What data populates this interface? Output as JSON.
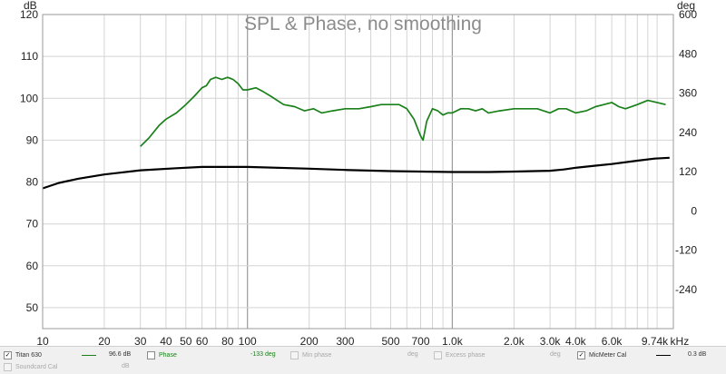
{
  "chart_data": {
    "type": "line",
    "title": "SPL & Phase, no smoothing",
    "left_axis_unit": "dB",
    "right_axis_unit": "deg",
    "x_unit": "kHz",
    "x_scale": "log",
    "xlim": [
      10,
      12000
    ],
    "ylim": [
      45,
      120
    ],
    "y2lim": [
      -360,
      600
    ],
    "grid": true,
    "x_ticks": [
      {
        "v": 10,
        "label": "10"
      },
      {
        "v": 20,
        "label": "20"
      },
      {
        "v": 30,
        "label": "30"
      },
      {
        "v": 40,
        "label": "40"
      },
      {
        "v": 50,
        "label": "50"
      },
      {
        "v": 60,
        "label": "60"
      },
      {
        "v": 80,
        "label": "80"
      },
      {
        "v": 100,
        "label": "100"
      },
      {
        "v": 200,
        "label": "200"
      },
      {
        "v": 300,
        "label": "300"
      },
      {
        "v": 500,
        "label": "500"
      },
      {
        "v": 700,
        "label": "700"
      },
      {
        "v": 1000,
        "label": "1.0k"
      },
      {
        "v": 2000,
        "label": "2.0k"
      },
      {
        "v": 3000,
        "label": "3.0k"
      },
      {
        "v": 4000,
        "label": "4.0k"
      },
      {
        "v": 6000,
        "label": "6.0k"
      },
      {
        "v": 9740,
        "label": "9.74k"
      }
    ],
    "y_ticks": [
      "50",
      "60",
      "70",
      "80",
      "90",
      "100",
      "110",
      "120"
    ],
    "y2_ticks": [
      "-240",
      "-120",
      "0",
      "120",
      "240",
      "360",
      "480",
      "600"
    ],
    "series": [
      {
        "name": "Titan 630",
        "color": "#1a801a",
        "x": [
          30,
          33,
          37,
          40,
          45,
          50,
          55,
          60,
          63,
          66,
          70,
          75,
          80,
          85,
          90,
          95,
          100,
          110,
          120,
          130,
          150,
          170,
          190,
          210,
          230,
          260,
          300,
          350,
          400,
          450,
          500,
          550,
          600,
          650,
          700,
          720,
          750,
          800,
          850,
          900,
          950,
          1000,
          1100,
          1200,
          1300,
          1400,
          1500,
          1700,
          2000,
          2300,
          2600,
          3000,
          3300,
          3600,
          4000,
          4500,
          5000,
          5500,
          6000,
          6500,
          7000,
          8000,
          9000,
          10000,
          11000
        ],
        "values": [
          88.5,
          90.5,
          93.5,
          95,
          96.5,
          98.5,
          100.5,
          102.5,
          103,
          104.5,
          105,
          104.5,
          105,
          104.5,
          103.5,
          102,
          102,
          102.5,
          101.5,
          100.5,
          98.5,
          98,
          97,
          97.5,
          96.5,
          97,
          97.5,
          97.5,
          98,
          98.5,
          98.5,
          98.5,
          97.5,
          95,
          91,
          90,
          94.5,
          97.5,
          97,
          96,
          96.5,
          96.5,
          97.5,
          97.5,
          97,
          97.5,
          96.5,
          97,
          97.5,
          97.5,
          97.5,
          96.5,
          97.5,
          97.5,
          96.5,
          97,
          98,
          98.5,
          99,
          98,
          97.5,
          98.5,
          99.5,
          99,
          98.5
        ]
      },
      {
        "name": "MicMeter Cal",
        "color": "#000000",
        "x": [
          10,
          12,
          15,
          20,
          30,
          45,
          60,
          100,
          200,
          300,
          500,
          700,
          1000,
          1500,
          2000,
          2500,
          3000,
          3500,
          4000,
          5000,
          6000,
          8000,
          9740,
          11500
        ],
        "values": [
          78.5,
          79.8,
          80.8,
          81.8,
          82.8,
          83.3,
          83.6,
          83.6,
          83.2,
          82.9,
          82.6,
          82.5,
          82.4,
          82.4,
          82.5,
          82.6,
          82.7,
          83,
          83.4,
          83.9,
          84.3,
          85.1,
          85.6,
          85.8
        ]
      }
    ]
  },
  "legend": [
    {
      "label": "Titan 630",
      "checked": true,
      "disabled": false,
      "color": "#1a801a",
      "value": "96.6 dB"
    },
    {
      "label": "Phase",
      "checked": false,
      "disabled": false,
      "color": "#1a801a",
      "value": "-133 deg"
    },
    {
      "label": "Min phase",
      "checked": false,
      "disabled": true,
      "color": "",
      "value": "deg"
    },
    {
      "label": "Excess phase",
      "checked": false,
      "disabled": true,
      "color": "",
      "value": "deg"
    },
    {
      "label": "MicMeter Cal",
      "checked": true,
      "disabled": false,
      "color": "#000000",
      "value": "0.3 dB"
    },
    {
      "label": "Soundcard Cal",
      "checked": false,
      "disabled": true,
      "color": "",
      "value": "dB"
    }
  ]
}
